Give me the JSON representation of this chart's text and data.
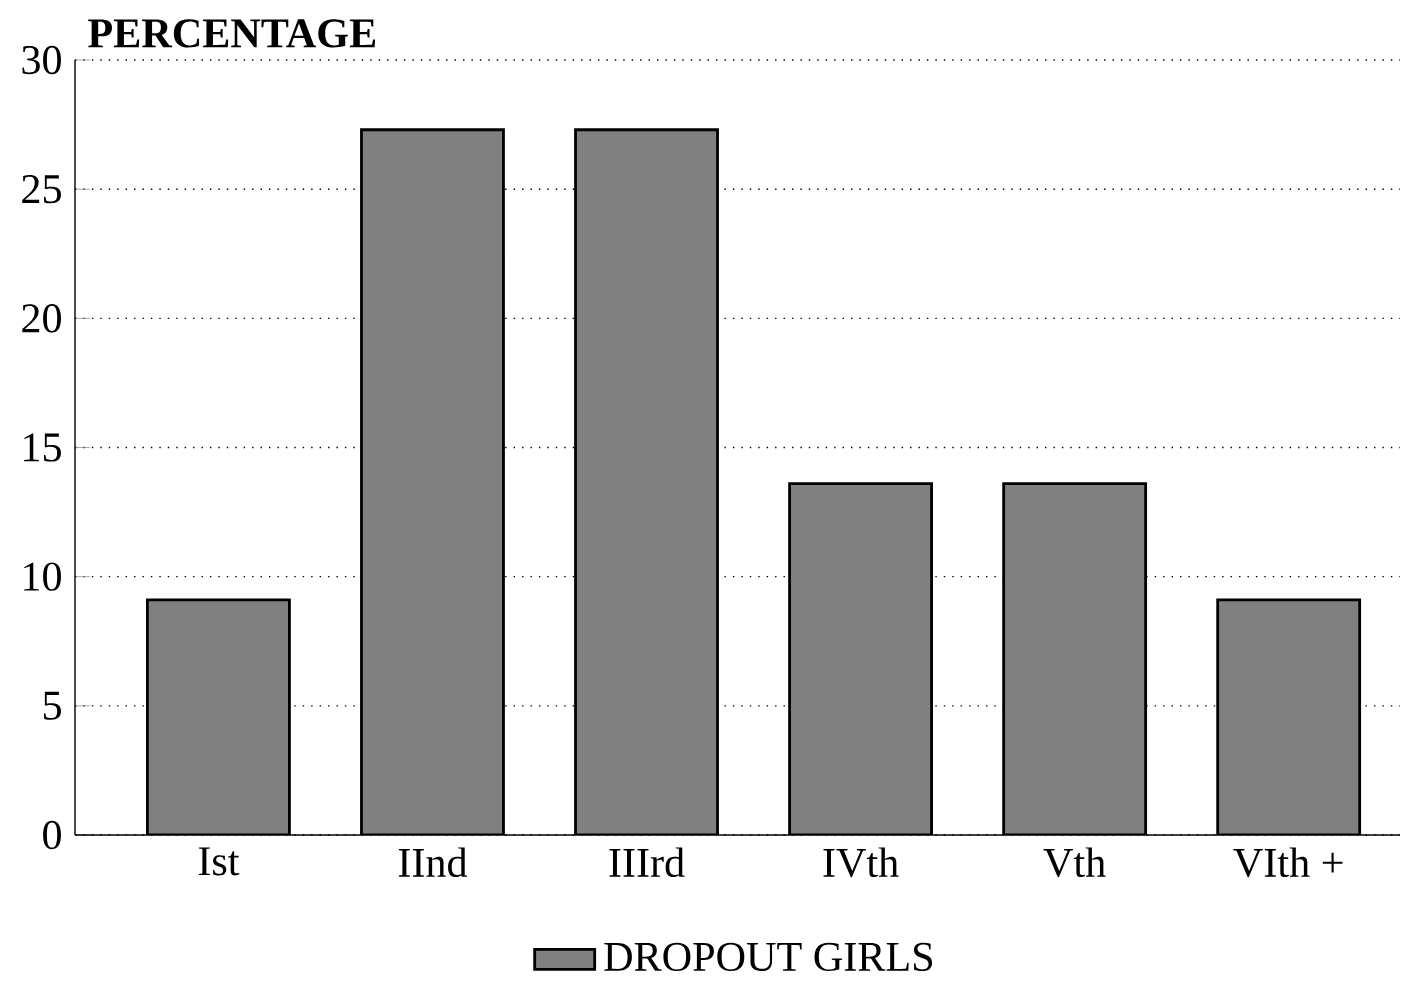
{
  "chart_data": {
    "type": "bar",
    "ylabel": "PERCENTAGE",
    "categories": [
      "Ist",
      "IInd",
      "IIIrd",
      "IVth",
      "Vth",
      "VIth +"
    ],
    "series": [
      {
        "name": "DROPOUT GIRLS",
        "color": "#808080",
        "values": [
          9.1,
          27.3,
          27.3,
          13.6,
          13.6,
          9.1
        ]
      }
    ],
    "ylim": [
      0,
      30
    ],
    "yticks": [
      0,
      5,
      10,
      15,
      20,
      25,
      30
    ],
    "grid": "y",
    "legend": "bottom"
  }
}
